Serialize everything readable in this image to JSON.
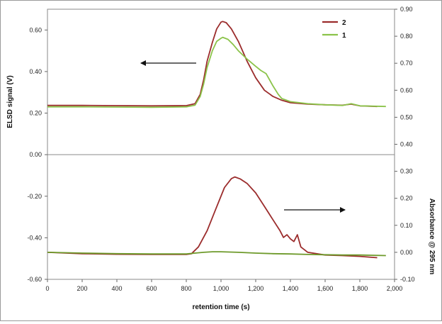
{
  "chart_data": {
    "type": "line",
    "xlabel": "retention time (s)",
    "ylabel_left": "ELSD signal (V)",
    "ylabel_right": "Absorbance @ 295 nm",
    "xlim": [
      0,
      2000
    ],
    "ylim_left": [
      -0.6,
      0.7
    ],
    "ylim_right": [
      -0.1,
      0.9
    ],
    "x_ticks": [
      "0",
      "200",
      "400",
      "600",
      "800",
      "1,000",
      "1,200",
      "1,400",
      "1,600",
      "1,800",
      "2,000"
    ],
    "y_left_ticks": [
      "-0.60",
      "-0.40",
      "-0.20",
      "0.00",
      "0.20",
      "0.40",
      "0.60"
    ],
    "y_right_ticks": [
      "-0.10",
      "0.00",
      "0.10",
      "0.20",
      "0.30",
      "0.40",
      "0.50",
      "0.60",
      "0.70",
      "0.80",
      "0.90"
    ],
    "grid": false,
    "legend": {
      "position": "top-right",
      "entries": [
        "2",
        "1"
      ]
    },
    "series": [
      {
        "name": "2",
        "axis": "left",
        "color": "#9b2c2c",
        "points": [
          [
            0,
            0.237
          ],
          [
            200,
            0.237
          ],
          [
            400,
            0.236
          ],
          [
            600,
            0.235
          ],
          [
            800,
            0.236
          ],
          [
            850,
            0.245
          ],
          [
            880,
            0.29
          ],
          [
            900,
            0.36
          ],
          [
            920,
            0.45
          ],
          [
            950,
            0.54
          ],
          [
            975,
            0.605
          ],
          [
            1000,
            0.638
          ],
          [
            1010,
            0.641
          ],
          [
            1030,
            0.635
          ],
          [
            1060,
            0.605
          ],
          [
            1100,
            0.545
          ],
          [
            1150,
            0.45
          ],
          [
            1200,
            0.37
          ],
          [
            1250,
            0.31
          ],
          [
            1300,
            0.28
          ],
          [
            1350,
            0.262
          ],
          [
            1400,
            0.25
          ],
          [
            1500,
            0.243
          ],
          [
            1600,
            0.24
          ],
          [
            1700,
            0.238
          ],
          [
            1750,
            0.243
          ],
          [
            1800,
            0.235
          ],
          [
            1900,
            0.232
          ]
        ]
      },
      {
        "name": "1",
        "axis": "left",
        "color": "#8bc34a",
        "points": [
          [
            0,
            0.23
          ],
          [
            200,
            0.23
          ],
          [
            400,
            0.229
          ],
          [
            600,
            0.228
          ],
          [
            800,
            0.23
          ],
          [
            850,
            0.238
          ],
          [
            880,
            0.28
          ],
          [
            900,
            0.34
          ],
          [
            920,
            0.42
          ],
          [
            950,
            0.5
          ],
          [
            975,
            0.545
          ],
          [
            1000,
            0.56
          ],
          [
            1010,
            0.565
          ],
          [
            1040,
            0.555
          ],
          [
            1070,
            0.53
          ],
          [
            1100,
            0.5
          ],
          [
            1150,
            0.46
          ],
          [
            1200,
            0.425
          ],
          [
            1230,
            0.405
          ],
          [
            1260,
            0.39
          ],
          [
            1300,
            0.33
          ],
          [
            1330,
            0.29
          ],
          [
            1350,
            0.27
          ],
          [
            1400,
            0.255
          ],
          [
            1500,
            0.245
          ],
          [
            1600,
            0.24
          ],
          [
            1700,
            0.237
          ],
          [
            1750,
            0.245
          ],
          [
            1800,
            0.235
          ],
          [
            1950,
            0.232
          ]
        ]
      },
      {
        "name": "2",
        "axis": "right",
        "color": "#9b2c2c",
        "points": [
          [
            0,
            0.0
          ],
          [
            200,
            -0.005
          ],
          [
            400,
            -0.007
          ],
          [
            600,
            -0.008
          ],
          [
            800,
            -0.008
          ],
          [
            830,
            -0.005
          ],
          [
            870,
            0.02
          ],
          [
            920,
            0.08
          ],
          [
            970,
            0.16
          ],
          [
            1020,
            0.24
          ],
          [
            1060,
            0.273
          ],
          [
            1080,
            0.279
          ],
          [
            1110,
            0.272
          ],
          [
            1150,
            0.255
          ],
          [
            1200,
            0.22
          ],
          [
            1250,
            0.17
          ],
          [
            1300,
            0.12
          ],
          [
            1340,
            0.08
          ],
          [
            1360,
            0.055
          ],
          [
            1380,
            0.065
          ],
          [
            1400,
            0.05
          ],
          [
            1420,
            0.04
          ],
          [
            1440,
            0.065
          ],
          [
            1460,
            0.02
          ],
          [
            1500,
            0.0
          ],
          [
            1600,
            -0.01
          ],
          [
            1700,
            -0.012
          ],
          [
            1800,
            -0.015
          ],
          [
            1900,
            -0.02
          ]
        ]
      },
      {
        "name": "1",
        "axis": "right",
        "color": "#6e9a2b",
        "points": [
          [
            0,
            0.0
          ],
          [
            200,
            -0.003
          ],
          [
            400,
            -0.005
          ],
          [
            600,
            -0.006
          ],
          [
            800,
            -0.006
          ],
          [
            850,
            -0.003
          ],
          [
            900,
            0.0
          ],
          [
            950,
            0.002
          ],
          [
            1000,
            0.002
          ],
          [
            1100,
            0.0
          ],
          [
            1200,
            -0.003
          ],
          [
            1300,
            -0.005
          ],
          [
            1400,
            -0.006
          ],
          [
            1500,
            -0.008
          ],
          [
            1600,
            -0.009
          ],
          [
            1700,
            -0.01
          ],
          [
            1800,
            -0.01
          ],
          [
            1950,
            -0.012
          ]
        ]
      }
    ]
  }
}
